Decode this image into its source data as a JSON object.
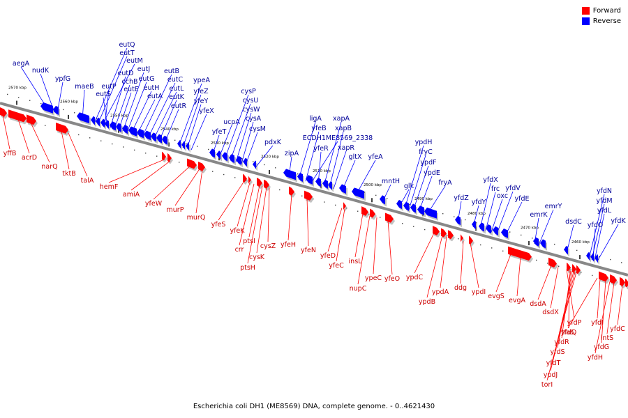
{
  "caption": "Escherichia coli DH1 (ME8569) DNA, complete genome. - 0..4621430",
  "legend": [
    {
      "label": "Forward",
      "color": "#ff0000"
    },
    {
      "label": "Reverse",
      "color": "#0000ff"
    }
  ],
  "colors": {
    "forward": "#ff0000",
    "reverse": "#0000ff",
    "backbone": "#888888",
    "forward_text": "#cc0000",
    "reverse_text": "#000099"
  },
  "scale_labels": [
    "2570 kbp",
    "2560 kbp",
    "2550 kbp",
    "2540 kbp",
    "2530 kbp",
    "2520 kbp",
    "2510 kbp",
    "2500 kbp",
    "2490 kbp",
    "2480 kbp",
    "2470 kbp",
    "2460 kbp"
  ],
  "reverse_genes": [
    "aegA",
    "nudK",
    "ypfG",
    "maeB",
    "eutQ",
    "eutT",
    "eutM",
    "eutP",
    "eutS",
    "eutD",
    "cchB",
    "eutE",
    "eutJ",
    "eutG",
    "eutH",
    "eutA",
    "eutB",
    "eutC",
    "eutL",
    "eutK",
    "eutR",
    "ypeA",
    "yfeZ",
    "yfeY",
    "yfeX",
    "yfeT",
    "ucpA",
    "cysP",
    "cysU",
    "cysW",
    "cysA",
    "cysM",
    "pdxK",
    "zipA",
    "ligA",
    "yfeB",
    "ECDH1ME8569_2338",
    "yfeR",
    "xapA",
    "xapB",
    "xapR",
    "gltX",
    "yfeA",
    "mntH",
    "glk",
    "ypdH",
    "fryC",
    "ypdF",
    "ypdE",
    "fryA",
    "yfdZ",
    "yfdY",
    "yfdX",
    "frc",
    "oxc",
    "yfdV",
    "yfdE",
    "emrY",
    "emrK",
    "dsdC",
    "yfdN",
    "yfdM",
    "yfdL",
    "yfdO",
    "yfdK"
  ],
  "forward_genes": [
    "yffB",
    "acrD",
    "narQ",
    "tktB",
    "talA",
    "hemF",
    "amiA",
    "yfeW",
    "murP",
    "murQ",
    "yfeS",
    "yfeK",
    "crr",
    "ptsI",
    "ptsH",
    "cysK",
    "cysZ",
    "yfeH",
    "yfeN",
    "yfeD",
    "yfeC",
    "insL",
    "nupC",
    "ypeC",
    "yfeO",
    "ypdC",
    "ypdB",
    "ypdA",
    "ddg",
    "ypdI",
    "evgS",
    "evgA",
    "dsdA",
    "dsdX",
    "yfdP",
    "yfdQ",
    "yfdR",
    "yfdS",
    "yfdT",
    "ypdJ",
    "torI",
    "tfaS",
    "yfdI",
    "yfdG",
    "yfdH",
    "intS",
    "yfdC"
  ]
}
